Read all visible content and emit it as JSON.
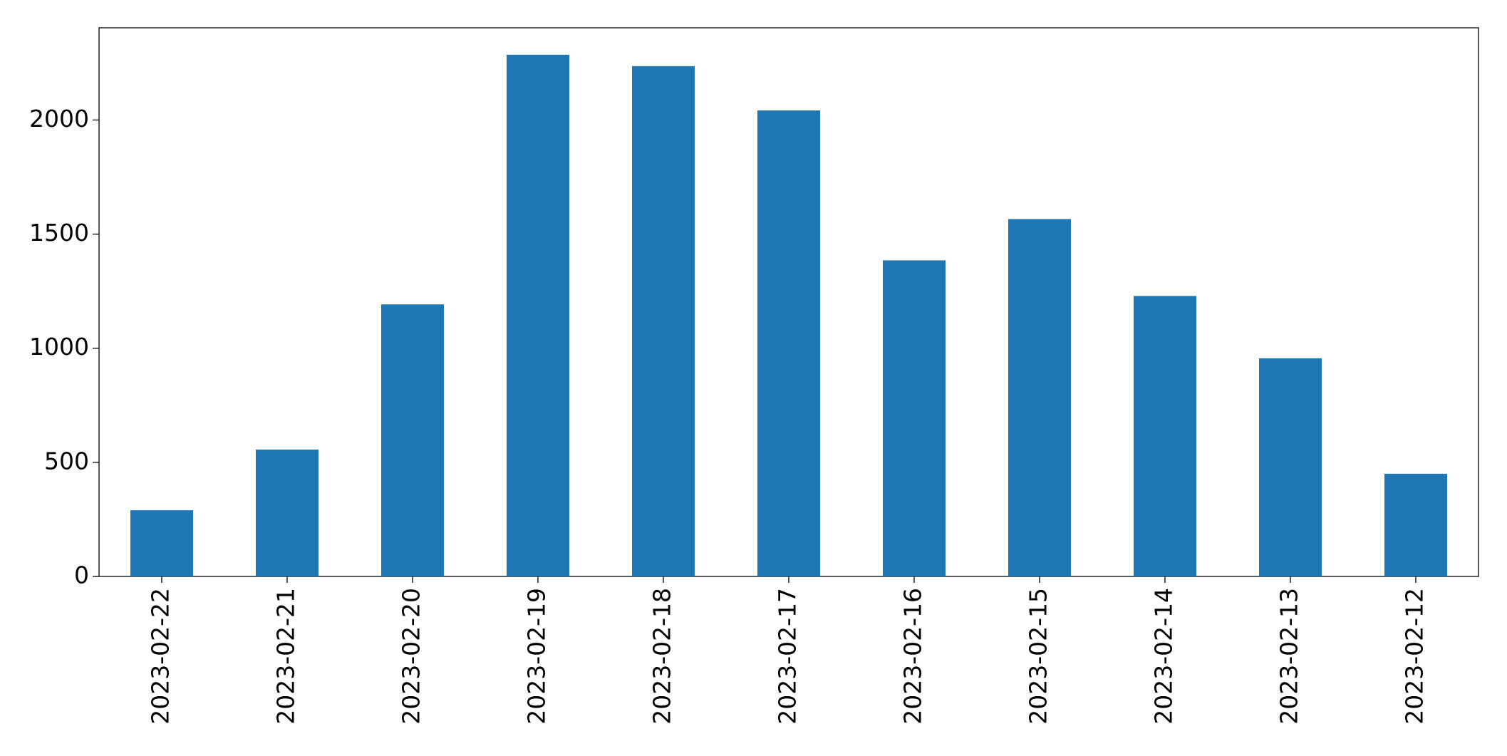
{
  "chart_data": {
    "type": "bar",
    "categories": [
      "2023-02-22",
      "2023-02-21",
      "2023-02-20",
      "2023-02-19",
      "2023-02-18",
      "2023-02-17",
      "2023-02-16",
      "2023-02-15",
      "2023-02-14",
      "2023-02-13",
      "2023-02-12"
    ],
    "values": [
      290,
      556,
      1192,
      2286,
      2236,
      2042,
      1385,
      1566,
      1229,
      956,
      450
    ],
    "color": "#1f77b4",
    "ylim": [
      0,
      2404
    ],
    "yticks": [
      0,
      500,
      1000,
      1500,
      2000
    ],
    "grid": false
  }
}
